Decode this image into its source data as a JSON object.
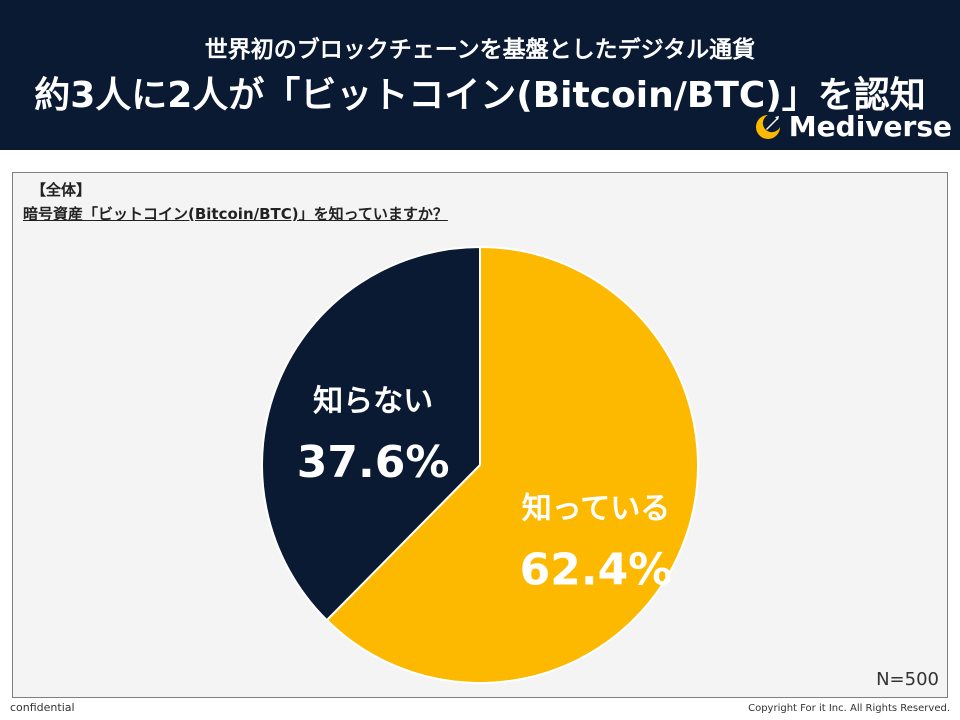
{
  "header": {
    "subtitle": "世界初のブロックチェーンを基盤としたデジタル通貨",
    "title": "約3人に2人が「ビットコイン(Bitcoin/BTC)」を認知",
    "brand": "Mediverse",
    "brand_icon": "crescent-rocket-icon"
  },
  "panel": {
    "section_label": "【全体】",
    "question": "暗号資産「ビットコイン(Bitcoin/BTC)」を知っていますか？",
    "sample_size": "N=500"
  },
  "chart_data": {
    "type": "pie",
    "title": "暗号資産「ビットコイン(Bitcoin/BTC)」を知っていますか？",
    "slices": [
      {
        "label": "知っている",
        "value": 62.4,
        "display": "62.4%",
        "color": "#fdb900"
      },
      {
        "label": "知らない",
        "value": 37.6,
        "display": "37.6%",
        "color": "#0b1a33"
      }
    ],
    "start": "12 o'clock",
    "direction": "clockwise",
    "legend": "none"
  },
  "footer": {
    "left": "confidential",
    "right": "Copyright For it Inc. All Rights Reserved."
  }
}
